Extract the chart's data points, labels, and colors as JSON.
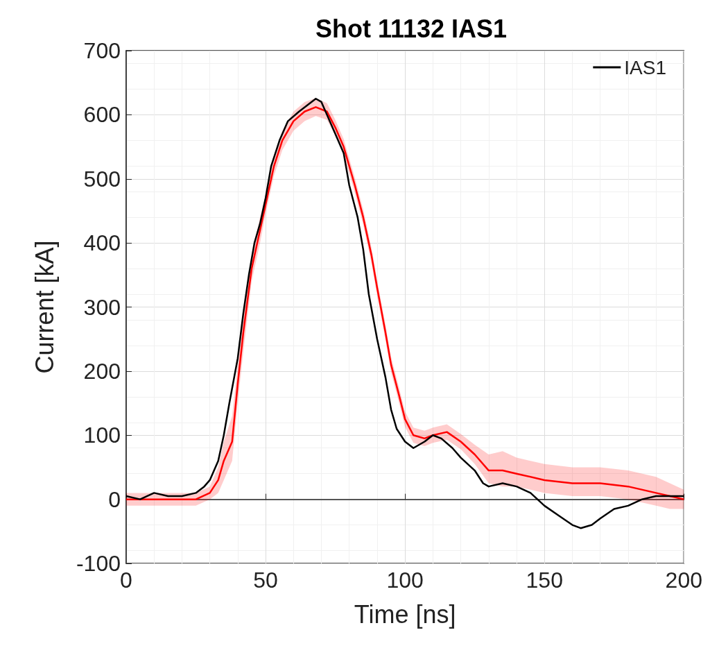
{
  "chart_data": {
    "type": "line",
    "title": "Shot 11132 IAS1",
    "xlabel": "Time [ns]",
    "ylabel": "Current [kA]",
    "xlim": [
      0,
      200
    ],
    "xticks": [
      0,
      50,
      100,
      150,
      200
    ],
    "ylim": [
      -100,
      700
    ],
    "yticks": [
      -100,
      0,
      100,
      200,
      300,
      400,
      500,
      600,
      700
    ],
    "grid": true,
    "legend": "top right",
    "line_style": "solid",
    "marker": "none",
    "series": [
      {
        "color": "#ff0000",
        "x": [
          0,
          25,
          30,
          33,
          35,
          38,
          40,
          42,
          45,
          48,
          50,
          53,
          56,
          60,
          64,
          68,
          72,
          75,
          78,
          82,
          85,
          88,
          90,
          93,
          95,
          98,
          100,
          103,
          107,
          110,
          115,
          120,
          125,
          130,
          135,
          140,
          150,
          160,
          170,
          180,
          190,
          195,
          200
        ],
        "values": [
          0,
          0,
          10,
          30,
          60,
          90,
          180,
          260,
          360,
          420,
          460,
          520,
          560,
          590,
          605,
          612,
          605,
          580,
          550,
          490,
          440,
          380,
          330,
          260,
          210,
          160,
          125,
          100,
          95,
          100,
          105,
          90,
          70,
          45,
          45,
          40,
          30,
          25,
          25,
          20,
          10,
          5,
          0
        ],
        "lower": [
          -10,
          -10,
          0,
          10,
          30,
          60,
          150,
          230,
          340,
          400,
          445,
          505,
          545,
          575,
          590,
          598,
          592,
          568,
          538,
          478,
          428,
          368,
          318,
          248,
          198,
          148,
          113,
          88,
          83,
          88,
          93,
          78,
          55,
          25,
          20,
          20,
          10,
          5,
          5,
          0,
          -10,
          -15,
          -15
        ],
        "upper": [
          10,
          10,
          20,
          50,
          90,
          130,
          210,
          290,
          380,
          440,
          475,
          535,
          575,
          605,
          620,
          626,
          618,
          592,
          562,
          502,
          452,
          392,
          342,
          272,
          222,
          172,
          137,
          112,
          107,
          112,
          117,
          102,
          85,
          70,
          75,
          65,
          55,
          50,
          50,
          45,
          35,
          25,
          15
        ]
      },
      {
        "name": "IAS1",
        "color": "#000000",
        "x": [
          0,
          5,
          10,
          15,
          20,
          25,
          28,
          30,
          33,
          35,
          37,
          40,
          42,
          44,
          46,
          48,
          50,
          52,
          55,
          58,
          62,
          65,
          68,
          70,
          72,
          75,
          78,
          80,
          83,
          85,
          87,
          90,
          93,
          95,
          97,
          100,
          103,
          107,
          110,
          113,
          117,
          120,
          125,
          128,
          130,
          135,
          140,
          145,
          150,
          155,
          160,
          163,
          167,
          170,
          175,
          180,
          185,
          190,
          195,
          200
        ],
        "values": [
          5,
          0,
          10,
          5,
          5,
          10,
          20,
          30,
          60,
          100,
          150,
          220,
          290,
          350,
          400,
          430,
          470,
          520,
          560,
          590,
          605,
          615,
          625,
          620,
          600,
          570,
          540,
          490,
          440,
          390,
          320,
          250,
          190,
          140,
          110,
          90,
          80,
          90,
          100,
          95,
          80,
          65,
          45,
          25,
          20,
          25,
          20,
          10,
          -10,
          -25,
          -40,
          -45,
          -40,
          -30,
          -15,
          -10,
          0,
          5,
          5,
          5
        ]
      }
    ]
  }
}
